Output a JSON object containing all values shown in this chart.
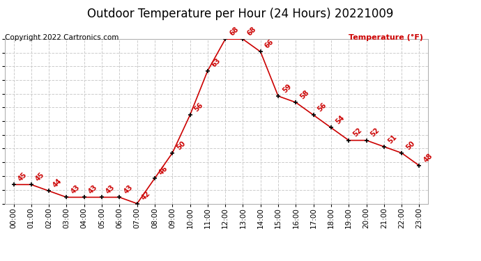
{
  "title": "Outdoor Temperature per Hour (24 Hours) 20221009",
  "copyright": "Copyright 2022 Cartronics.com",
  "legend_label": "Temperature (°F)",
  "hours": [
    0,
    1,
    2,
    3,
    4,
    5,
    6,
    7,
    8,
    9,
    10,
    11,
    12,
    13,
    14,
    15,
    16,
    17,
    18,
    19,
    20,
    21,
    22,
    23
  ],
  "temps": [
    45,
    45,
    44,
    43,
    43,
    43,
    43,
    42,
    46,
    50,
    56,
    63,
    68,
    68,
    66,
    59,
    58,
    56,
    54,
    52,
    52,
    51,
    50,
    48
  ],
  "ylim": [
    42.0,
    68.0
  ],
  "yticks": [
    42.0,
    44.2,
    46.3,
    48.5,
    50.7,
    52.8,
    55.0,
    57.2,
    59.3,
    61.5,
    63.7,
    65.8,
    68.0
  ],
  "line_color": "#cc0000",
  "marker_color": "#000000",
  "label_color": "#cc0000",
  "title_color": "#000000",
  "copyright_color": "#000000",
  "legend_color": "#cc0000",
  "bg_color": "#ffffff",
  "grid_color": "#cccccc",
  "title_fontsize": 12,
  "label_fontsize": 8,
  "tick_fontsize": 7.5,
  "copyright_fontsize": 7.5,
  "annotation_fontsize": 7
}
